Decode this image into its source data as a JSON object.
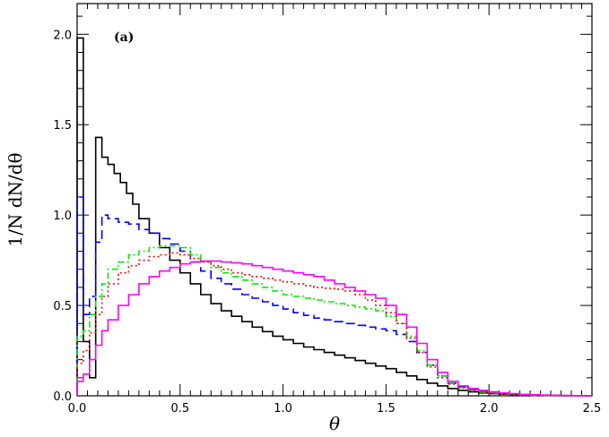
{
  "chart_data": {
    "type": "line",
    "step": true,
    "annotation": "(a)",
    "xlabel": "θ",
    "ylabel": "1/N dN/dθ",
    "xlim": [
      0,
      2.5
    ],
    "ylim": [
      0,
      2.17
    ],
    "x_ticks": [
      0,
      0.5,
      1,
      1.5,
      2,
      2.5
    ],
    "x_tick_labels": [
      "0.0",
      "0.5",
      "1.0",
      "1.5",
      "2.0",
      "2.5"
    ],
    "y_ticks": [
      0,
      0.5,
      1,
      1.5,
      2
    ],
    "y_tick_labels": [
      "0.0",
      "0.5",
      "1.0",
      "1.5",
      "2.0"
    ],
    "grid": false,
    "legend": "none",
    "series": [
      {
        "color": "#000000",
        "dash": "solid",
        "x": [
          0.0,
          0.03,
          0.06,
          0.09,
          0.12,
          0.15,
          0.18,
          0.21,
          0.24,
          0.27,
          0.3,
          0.35,
          0.4,
          0.45,
          0.5,
          0.55,
          0.6,
          0.65,
          0.7,
          0.75,
          0.8,
          0.85,
          0.9,
          0.95,
          1.0,
          1.05,
          1.1,
          1.15,
          1.2,
          1.25,
          1.3,
          1.35,
          1.4,
          1.45,
          1.5,
          1.55,
          1.6,
          1.65,
          1.7,
          1.75,
          1.8,
          1.85,
          1.9,
          1.95,
          2.0,
          2.05,
          2.1,
          2.15,
          2.2,
          2.25,
          2.3,
          2.35,
          2.4,
          2.45,
          2.5
        ],
        "y": [
          1.98,
          0.3,
          0.1,
          1.43,
          1.32,
          1.28,
          1.23,
          1.18,
          1.12,
          1.06,
          0.98,
          0.9,
          0.82,
          0.75,
          0.68,
          0.62,
          0.56,
          0.51,
          0.47,
          0.44,
          0.41,
          0.38,
          0.355,
          0.33,
          0.31,
          0.29,
          0.27,
          0.255,
          0.24,
          0.225,
          0.21,
          0.195,
          0.18,
          0.165,
          0.15,
          0.13,
          0.11,
          0.09,
          0.07,
          0.055,
          0.04,
          0.03,
          0.022,
          0.016,
          0.012,
          0.009,
          0.007,
          0.005,
          0.004,
          0.003,
          0.002,
          0.001,
          0.001,
          0.0005,
          0.0
        ]
      },
      {
        "color": "#0000ff",
        "dash": "long-dash",
        "x": [
          0.0,
          0.03,
          0.06,
          0.09,
          0.12,
          0.15,
          0.2,
          0.25,
          0.3,
          0.35,
          0.4,
          0.45,
          0.5,
          0.55,
          0.6,
          0.65,
          0.7,
          0.75,
          0.8,
          0.85,
          0.9,
          0.95,
          1.0,
          1.05,
          1.1,
          1.15,
          1.2,
          1.25,
          1.3,
          1.35,
          1.4,
          1.45,
          1.5,
          1.55,
          1.6,
          1.65,
          1.7,
          1.75,
          1.8,
          1.85,
          1.9,
          1.95,
          2.0,
          2.05,
          2.1,
          2.15,
          2.2,
          2.25,
          2.3,
          2.35,
          2.4,
          2.45,
          2.5
        ],
        "y": [
          1.1,
          0.45,
          0.55,
          0.85,
          1.0,
          0.98,
          0.96,
          0.95,
          0.92,
          0.9,
          0.87,
          0.84,
          0.8,
          0.74,
          0.69,
          0.65,
          0.62,
          0.59,
          0.56,
          0.54,
          0.52,
          0.5,
          0.48,
          0.46,
          0.445,
          0.43,
          0.42,
          0.41,
          0.4,
          0.39,
          0.38,
          0.37,
          0.36,
          0.34,
          0.3,
          0.24,
          0.17,
          0.11,
          0.07,
          0.05,
          0.035,
          0.025,
          0.018,
          0.013,
          0.009,
          0.006,
          0.004,
          0.003,
          0.002,
          0.001,
          0.001,
          0.0005,
          0.0
        ]
      },
      {
        "color": "#00ee00",
        "dash": "dash-dot",
        "x": [
          0.0,
          0.03,
          0.06,
          0.09,
          0.12,
          0.15,
          0.2,
          0.25,
          0.3,
          0.35,
          0.4,
          0.45,
          0.5,
          0.55,
          0.6,
          0.65,
          0.7,
          0.75,
          0.8,
          0.85,
          0.9,
          0.95,
          1.0,
          1.05,
          1.1,
          1.15,
          1.2,
          1.25,
          1.3,
          1.35,
          1.4,
          1.45,
          1.5,
          1.55,
          1.6,
          1.65,
          1.7,
          1.75,
          1.8,
          1.85,
          1.9,
          1.95,
          2.0,
          2.05,
          2.1,
          2.15,
          2.2,
          2.25,
          2.3,
          2.35,
          2.4,
          2.45,
          2.5
        ],
        "y": [
          0.33,
          0.36,
          0.45,
          0.55,
          0.62,
          0.7,
          0.74,
          0.78,
          0.8,
          0.82,
          0.83,
          0.83,
          0.82,
          0.78,
          0.74,
          0.71,
          0.68,
          0.66,
          0.64,
          0.62,
          0.6,
          0.58,
          0.56,
          0.55,
          0.54,
          0.53,
          0.52,
          0.51,
          0.5,
          0.49,
          0.48,
          0.47,
          0.44,
          0.4,
          0.33,
          0.25,
          0.17,
          0.11,
          0.07,
          0.045,
          0.03,
          0.02,
          0.015,
          0.01,
          0.007,
          0.005,
          0.003,
          0.002,
          0.001,
          0.001,
          0.0005,
          0.0002,
          0.0
        ]
      },
      {
        "color": "#ff0000",
        "dash": "dotted",
        "x": [
          0.0,
          0.03,
          0.06,
          0.09,
          0.12,
          0.15,
          0.2,
          0.25,
          0.3,
          0.35,
          0.4,
          0.45,
          0.5,
          0.55,
          0.6,
          0.65,
          0.7,
          0.75,
          0.8,
          0.85,
          0.9,
          0.95,
          1.0,
          1.05,
          1.1,
          1.15,
          1.2,
          1.25,
          1.3,
          1.35,
          1.4,
          1.45,
          1.5,
          1.55,
          1.6,
          1.65,
          1.7,
          1.75,
          1.8,
          1.85,
          1.9,
          1.95,
          2.0,
          2.05,
          2.1,
          2.15,
          2.2,
          2.25,
          2.3,
          2.35,
          2.4,
          2.45,
          2.5
        ],
        "y": [
          0.18,
          0.25,
          0.35,
          0.45,
          0.55,
          0.62,
          0.68,
          0.72,
          0.75,
          0.77,
          0.78,
          0.79,
          0.78,
          0.76,
          0.74,
          0.72,
          0.7,
          0.68,
          0.67,
          0.66,
          0.65,
          0.64,
          0.63,
          0.62,
          0.61,
          0.6,
          0.595,
          0.59,
          0.58,
          0.56,
          0.53,
          0.5,
          0.46,
          0.4,
          0.32,
          0.24,
          0.16,
          0.1,
          0.065,
          0.045,
          0.03,
          0.02,
          0.015,
          0.01,
          0.007,
          0.005,
          0.003,
          0.002,
          0.001,
          0.001,
          0.0005,
          0.0002,
          0.0
        ]
      },
      {
        "color": "#ff00ff",
        "dash": "solid",
        "x": [
          0.0,
          0.03,
          0.06,
          0.09,
          0.12,
          0.15,
          0.2,
          0.25,
          0.3,
          0.35,
          0.4,
          0.45,
          0.5,
          0.55,
          0.6,
          0.65,
          0.7,
          0.75,
          0.8,
          0.85,
          0.9,
          0.95,
          1.0,
          1.05,
          1.1,
          1.15,
          1.2,
          1.25,
          1.3,
          1.35,
          1.4,
          1.45,
          1.5,
          1.55,
          1.6,
          1.65,
          1.7,
          1.75,
          1.8,
          1.85,
          1.9,
          1.95,
          2.0,
          2.05,
          2.1,
          2.15,
          2.2,
          2.25,
          2.3,
          2.35,
          2.4,
          2.45,
          2.5
        ],
        "y": [
          0.08,
          0.12,
          0.2,
          0.28,
          0.36,
          0.42,
          0.5,
          0.56,
          0.62,
          0.66,
          0.69,
          0.71,
          0.73,
          0.74,
          0.745,
          0.745,
          0.74,
          0.735,
          0.73,
          0.72,
          0.71,
          0.7,
          0.69,
          0.68,
          0.67,
          0.66,
          0.64,
          0.62,
          0.6,
          0.58,
          0.56,
          0.54,
          0.5,
          0.45,
          0.38,
          0.29,
          0.2,
          0.13,
          0.08,
          0.055,
          0.04,
          0.03,
          0.022,
          0.016,
          0.012,
          0.008,
          0.006,
          0.004,
          0.003,
          0.002,
          0.001,
          0.0005,
          0.0
        ]
      }
    ]
  }
}
